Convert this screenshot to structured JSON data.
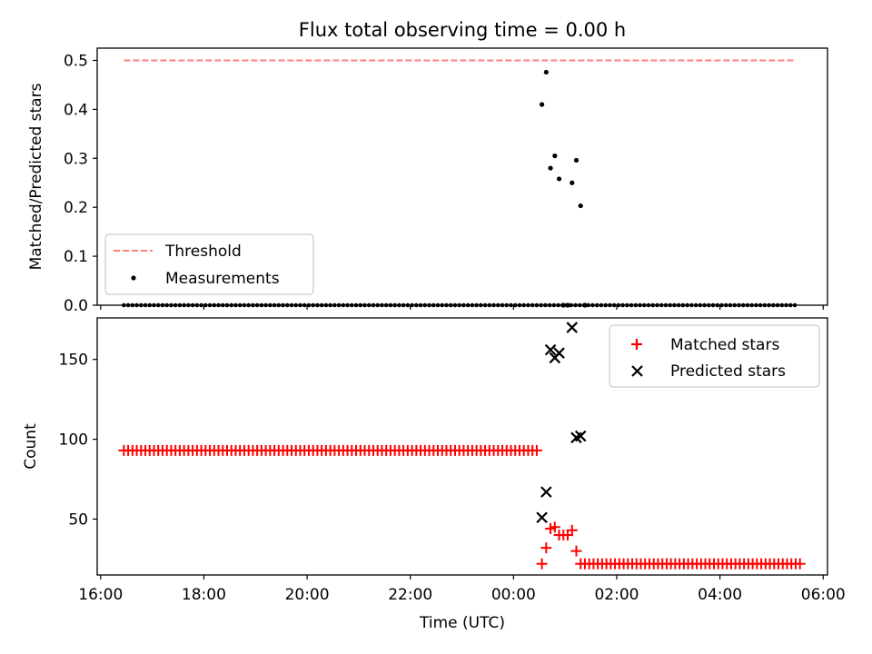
{
  "title": "Flux total observing time = 0.00 h",
  "colors": {
    "threshold": "#ff7f7f",
    "measurements": "#000000",
    "matched": "#ff0000",
    "predicted": "#000000"
  },
  "chart_data": [
    {
      "type": "scatter",
      "title": "Flux total observing time = 0.00 h",
      "ylabel": "Matched/Predicted stars",
      "xlabel": "",
      "xlim": [
        "15:56",
        "06:05"
      ],
      "ylim": [
        0,
        0.525
      ],
      "x_ticks": [
        "16:00",
        "18:00",
        "20:00",
        "22:00",
        "00:00",
        "02:00",
        "04:00",
        "06:00"
      ],
      "y_ticks": [
        "0.0",
        "0.1",
        "0.2",
        "0.3",
        "0.4",
        "0.5"
      ],
      "y_tick_values": [
        0,
        0.1,
        0.2,
        0.3,
        0.4,
        0.5
      ],
      "legend_position": "lower-left",
      "series": [
        {
          "name": "Threshold",
          "kind": "dashed-line",
          "x": [
            "16:27",
            "05:27"
          ],
          "y": [
            0.5,
            0.5
          ]
        },
        {
          "name": "Measurements",
          "kind": "points",
          "baseline_range": [
            "16:27",
            "05:27"
          ],
          "baseline_step_minutes": 5,
          "baseline_value": 0,
          "baseline_exclude": [
            "00:33",
            "00:38",
            "00:43",
            "00:48",
            "00:53",
            "00:58",
            "01:08",
            "01:13",
            "01:18"
          ],
          "x": [
            "00:33",
            "00:38",
            "00:43",
            "00:48",
            "00:53",
            "00:58",
            "01:03",
            "01:08",
            "01:13",
            "01:18",
            "01:23"
          ],
          "y": [
            0.41,
            0.476,
            0.28,
            0.305,
            0.258,
            0.0,
            0.0,
            0.25,
            0.296,
            0.203,
            0.0
          ]
        }
      ]
    },
    {
      "type": "scatter",
      "title": "",
      "xlabel": "Time (UTC)",
      "ylabel": "Count",
      "xlim": [
        "15:56",
        "06:05"
      ],
      "ylim": [
        15,
        176
      ],
      "x_ticks": [
        "16:00",
        "18:00",
        "20:00",
        "22:00",
        "00:00",
        "02:00",
        "04:00",
        "06:00"
      ],
      "y_ticks": [
        "50",
        "100",
        "150"
      ],
      "y_tick_values": [
        50,
        100,
        150
      ],
      "legend_position": "upper-right",
      "series": [
        {
          "name": "Matched stars",
          "marker": "+",
          "segments": [
            {
              "range": [
                "16:27",
                "00:28"
              ],
              "step_minutes": 5,
              "value": 93
            },
            {
              "range": [
                "01:28",
                "05:33"
              ],
              "step_minutes": 5,
              "value": 22
            }
          ],
          "x": [
            "00:33",
            "00:38",
            "00:43",
            "00:48",
            "00:53",
            "00:58",
            "01:03",
            "01:08",
            "01:13",
            "01:18",
            "01:23"
          ],
          "y": [
            22,
            32,
            44,
            45,
            40,
            40,
            40,
            43,
            30,
            22,
            22
          ]
        },
        {
          "name": "Predicted stars",
          "marker": "x",
          "x": [
            "00:33",
            "00:38",
            "00:43",
            "00:48",
            "00:53",
            "01:08",
            "01:13",
            "01:18"
          ],
          "y": [
            51,
            67,
            156,
            151,
            154,
            170,
            101,
            102
          ]
        }
      ]
    }
  ]
}
